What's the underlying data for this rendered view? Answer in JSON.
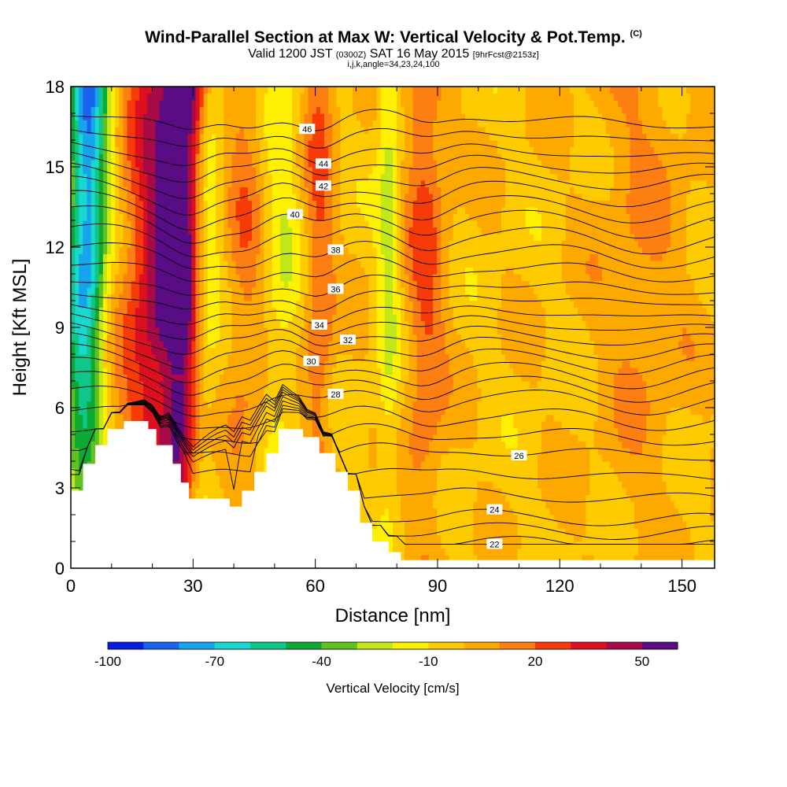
{
  "header": {
    "title": "Wind-Parallel Section at Max W: Vertical Velocity & Pot.Temp.",
    "title_mark": "(C)",
    "valid_prefix": "Valid 1200 JST",
    "valid_z": "(0300Z)",
    "valid_date": "SAT 16 May 2015",
    "valid_fcst": "[9hrFcst@2153z]",
    "indices": "i,j,k,angle=34,23,24,100"
  },
  "chart_data": {
    "type": "heatmap",
    "xlabel": "Distance [nm]",
    "ylabel": "Height [Kft MSL]",
    "xlim": [
      0,
      158
    ],
    "ylim": [
      0,
      18
    ],
    "xticks": [
      0,
      30,
      60,
      90,
      120,
      150
    ],
    "yticks": [
      0,
      3,
      6,
      9,
      12,
      15,
      18
    ],
    "grid": false,
    "colorbar": {
      "label": "Vertical Velocity [cm/s]",
      "placement": "bottom",
      "levels": [
        -100,
        -90,
        -80,
        -70,
        -60,
        -50,
        -40,
        -30,
        -20,
        -10,
        0,
        10,
        20,
        30,
        40,
        50,
        60
      ],
      "tick_labels": [
        -100,
        -70,
        -40,
        -10,
        20,
        50
      ],
      "colors": [
        "#0a1be6",
        "#1a63ee",
        "#17a4ec",
        "#18d8d0",
        "#10c78a",
        "#0daa35",
        "#62c21d",
        "#c2e81a",
        "#fef000",
        "#fecb00",
        "#fda900",
        "#fd7f12",
        "#f63b08",
        "#dd1020",
        "#a80a48",
        "#5a0c84"
      ]
    },
    "updraft_columns": [
      {
        "x": 25,
        "w": 7,
        "value": 55
      },
      {
        "x": 30,
        "w": 3,
        "value": 28
      },
      {
        "x": 43,
        "w": 3,
        "value": 15
      },
      {
        "x": 61,
        "w": 2.5,
        "value": 22
      },
      {
        "x": 87,
        "w": 3.5,
        "value": 24
      },
      {
        "x": 140,
        "w": 8,
        "value": 12
      }
    ],
    "downdraft_columns": [
      {
        "x": 4,
        "w": 3.5,
        "value": -75
      },
      {
        "x": 33,
        "w": 3,
        "value": -40
      },
      {
        "x": 52,
        "w": 3,
        "value": -15
      },
      {
        "x": 78,
        "w": 2,
        "value": -22
      }
    ],
    "terrain": [
      [
        0,
        2.9
      ],
      [
        3,
        2.9
      ],
      [
        3,
        3.9
      ],
      [
        6,
        3.9
      ],
      [
        6,
        4.6
      ],
      [
        9,
        4.6
      ],
      [
        9,
        5.2
      ],
      [
        13,
        5.2
      ],
      [
        13,
        5.5
      ],
      [
        19,
        5.5
      ],
      [
        19,
        5.2
      ],
      [
        21,
        5.2
      ],
      [
        21,
        4.6
      ],
      [
        25,
        4.6
      ],
      [
        25,
        3.9
      ],
      [
        27,
        3.9
      ],
      [
        27,
        3.2
      ],
      [
        29,
        3.2
      ],
      [
        29,
        2.6
      ],
      [
        39,
        2.6
      ],
      [
        39,
        2.3
      ],
      [
        42,
        2.3
      ],
      [
        42,
        2.9
      ],
      [
        45,
        2.9
      ],
      [
        45,
        3.6
      ],
      [
        48,
        3.6
      ],
      [
        48,
        4.3
      ],
      [
        51,
        4.3
      ],
      [
        51,
        5.2
      ],
      [
        57,
        5.2
      ],
      [
        57,
        4.9
      ],
      [
        61,
        4.9
      ],
      [
        61,
        4.3
      ],
      [
        65,
        4.3
      ],
      [
        65,
        3.6
      ],
      [
        68,
        3.6
      ],
      [
        68,
        2.9
      ],
      [
        71,
        2.9
      ],
      [
        71,
        1.7
      ],
      [
        74,
        1.7
      ],
      [
        74,
        1.0
      ],
      [
        78,
        1.0
      ],
      [
        78,
        0.6
      ],
      [
        81,
        0.6
      ],
      [
        81,
        0.3
      ],
      [
        158,
        0.3
      ]
    ],
    "theta_contours": [
      {
        "label": "22",
        "base": 0.5,
        "label_x": 104
      },
      {
        "label": "24",
        "base": 2.0,
        "label_x": 104
      },
      {
        "label": "26",
        "base": 4.5,
        "label_x": 110
      },
      {
        "label": "28",
        "base": 6.5,
        "label_x": 65
      },
      {
        "label": "30",
        "base": 8.0,
        "label_x": 59
      },
      {
        "label": "32",
        "base": 8.9,
        "label_x": 68
      },
      {
        "label": "34",
        "base": 9.8,
        "label_x": 61
      },
      {
        "label": "36",
        "base": 10.8,
        "label_x": 65
      },
      {
        "label": "38",
        "base": 12.0,
        "label_x": 65
      },
      {
        "label": "40",
        "base": 13.2,
        "label_x": 55
      },
      {
        "label": "42",
        "base": 14.8,
        "label_x": 62
      },
      {
        "label": "44",
        "base": 15.8,
        "label_x": 62
      },
      {
        "label": "46",
        "base": 17.0,
        "label_x": 58
      }
    ]
  }
}
